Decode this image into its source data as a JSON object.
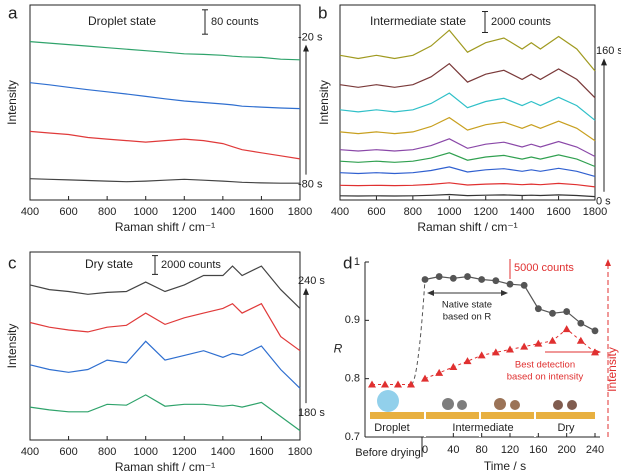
{
  "chart_data": [
    {
      "type": "line",
      "panel_label": "a",
      "title": "Droplet state",
      "xlabel": "Raman shift / cm⁻¹",
      "ylabel": "Intensity",
      "scale_bar": {
        "value": 80,
        "label": "80 counts"
      },
      "arrow": {
        "top": "-20 s",
        "bottom": "-80 s"
      },
      "xlim": [
        400,
        1800
      ],
      "xticks": [
        400,
        600,
        800,
        1000,
        1200,
        1400,
        1600,
        1800
      ],
      "ylim": [
        0,
        640
      ],
      "x": [
        400,
        500,
        600,
        700,
        800,
        900,
        1000,
        1100,
        1200,
        1300,
        1400,
        1450,
        1500,
        1600,
        1700,
        1800
      ],
      "series": [
        {
          "color": "#2fa36b",
          "values": [
            520,
            515,
            510,
            505,
            500,
            495,
            490,
            485,
            480,
            478,
            475,
            472,
            470,
            468,
            462,
            460
          ]
        },
        {
          "color": "#2f6fd0",
          "values": [
            385,
            378,
            370,
            362,
            355,
            348,
            340,
            332,
            325,
            320,
            315,
            312,
            308,
            305,
            302,
            300
          ]
        },
        {
          "color": "#e03a3a",
          "values": [
            225,
            220,
            215,
            205,
            200,
            195,
            190,
            195,
            200,
            195,
            185,
            175,
            165,
            155,
            145,
            135
          ]
        },
        {
          "color": "#444444",
          "values": [
            70,
            68,
            66,
            64,
            62,
            60,
            62,
            65,
            68,
            65,
            62,
            60,
            58,
            56,
            55,
            55
          ]
        }
      ]
    },
    {
      "type": "line",
      "panel_label": "b",
      "title": "Intermediate state",
      "xlabel": "Raman shift / cm⁻¹",
      "ylabel": "Intensity",
      "scale_bar": {
        "value": 2000,
        "label": "2000 counts"
      },
      "arrow": {
        "top": "160 s",
        "bottom": "0 s"
      },
      "xlim": [
        400,
        1800
      ],
      "xticks": [
        400,
        600,
        800,
        1000,
        1200,
        1400,
        1600,
        1800
      ],
      "ylim": [
        0,
        18600
      ],
      "x": [
        400,
        500,
        600,
        700,
        800,
        900,
        1000,
        1100,
        1200,
        1300,
        1400,
        1450,
        1500,
        1600,
        1700,
        1800
      ],
      "series": [
        {
          "color": "#a09a20",
          "values": [
            13800,
            13500,
            13800,
            13500,
            13800,
            14700,
            16200,
            14100,
            15000,
            15450,
            14400,
            15000,
            14400,
            15600,
            14400,
            12300
          ]
        },
        {
          "color": "#7a3a3a",
          "values": [
            11000,
            10750,
            11000,
            10750,
            11000,
            11750,
            13000,
            11250,
            12000,
            12375,
            11500,
            12000,
            11500,
            12500,
            11500,
            9750
          ]
        },
        {
          "color": "#30c0c8",
          "values": [
            8600,
            8400,
            8600,
            8400,
            8600,
            9200,
            10200,
            8800,
            9400,
            9700,
            9000,
            9400,
            9000,
            9800,
            9000,
            7600
          ]
        },
        {
          "color": "#c8a020",
          "values": [
            6500,
            6330,
            6500,
            6330,
            6500,
            7010,
            7860,
            6670,
            7180,
            7435,
            6840,
            7180,
            6840,
            7520,
            6840,
            5650
          ]
        },
        {
          "color": "#8a48a8",
          "values": [
            4800,
            4670,
            4800,
            4670,
            4800,
            5190,
            5840,
            4930,
            5320,
            5515,
            5060,
            5320,
            5060,
            5580,
            5060,
            4150
          ]
        },
        {
          "color": "#30a050",
          "values": [
            3700,
            3600,
            3700,
            3600,
            3700,
            4000,
            4500,
            3800,
            4100,
            4250,
            3900,
            4100,
            3900,
            4300,
            3900,
            3200
          ]
        },
        {
          "color": "#3060d0",
          "values": [
            2600,
            2530,
            2600,
            2530,
            2600,
            2810,
            3160,
            2670,
            2880,
            2985,
            2740,
            2880,
            2740,
            3020,
            2740,
            2250
          ]
        },
        {
          "color": "#e03030",
          "values": [
            1400,
            1370,
            1400,
            1370,
            1400,
            1490,
            1640,
            1430,
            1520,
            1565,
            1460,
            1520,
            1460,
            1580,
            1460,
            1250
          ]
        },
        {
          "color": "#333333",
          "values": [
            400,
            385,
            400,
            385,
            400,
            445,
            520,
            415,
            460,
            483,
            430,
            460,
            430,
            490,
            430,
            325
          ]
        }
      ]
    },
    {
      "type": "line",
      "panel_label": "c",
      "title": "Dry state",
      "xlabel": "Raman shift / cm⁻¹",
      "ylabel": "Intensity",
      "scale_bar": {
        "value": 2000,
        "label": "2000 counts"
      },
      "arrow": {
        "top": "240 s",
        "bottom": "180 s"
      },
      "xlim": [
        400,
        1800
      ],
      "xticks": [
        400,
        600,
        800,
        1000,
        1200,
        1400,
        1600,
        1800
      ],
      "ylim": [
        0,
        20000
      ],
      "x": [
        400,
        500,
        600,
        700,
        800,
        900,
        1000,
        1100,
        1200,
        1300,
        1400,
        1450,
        1500,
        1600,
        1700,
        1800
      ],
      "series": [
        {
          "color": "#444444",
          "values": [
            16500,
            16000,
            15800,
            15500,
            15700,
            15800,
            16800,
            15800,
            16500,
            17500,
            17500,
            18500,
            17500,
            18500,
            16000,
            14000
          ]
        },
        {
          "color": "#e03a3a",
          "values": [
            12500,
            12000,
            11700,
            11500,
            12000,
            12200,
            13500,
            12300,
            13000,
            13500,
            14000,
            14500,
            13500,
            14500,
            11000,
            9500
          ]
        },
        {
          "color": "#2f6fd0",
          "values": [
            8000,
            7500,
            7200,
            7500,
            8500,
            8200,
            10500,
            8500,
            9000,
            9500,
            8800,
            9200,
            9000,
            10000,
            7500,
            5500
          ]
        },
        {
          "color": "#2fa36b",
          "values": [
            3500,
            3200,
            3000,
            3000,
            3800,
            3700,
            4800,
            3600,
            3800,
            3800,
            3600,
            3700,
            3500,
            4000,
            2500,
            1000
          ]
        }
      ]
    },
    {
      "type": "combo",
      "panel_label": "d",
      "xlabel": "Time / s",
      "ylabel": "R",
      "y2label": "Intensity",
      "before_label": "Before drying",
      "scale_label": "5000 counts",
      "stages": [
        "Droplet",
        "Intermediate",
        "Dry"
      ],
      "annotations": [
        {
          "lines": [
            "Native state",
            "based on R"
          ]
        },
        {
          "lines": [
            "Best detection",
            "based on intensity"
          ]
        }
      ],
      "xlim": [
        0,
        240
      ],
      "xticks": [
        0,
        40,
        80,
        120,
        160,
        200,
        240
      ],
      "ylim": [
        0.7,
        1.0
      ],
      "yticks": [
        0.7,
        0.8,
        0.9,
        1
      ],
      "y2lim": [
        0.7,
        1.0
      ],
      "series": [
        {
          "color": "#555555",
          "x": [
            0,
            20,
            40,
            60,
            80,
            100,
            120,
            140,
            160,
            180,
            200,
            220,
            240
          ],
          "values": [
            0.97,
            0.975,
            0.972,
            0.975,
            0.97,
            0.968,
            0.962,
            0.96,
            0.92,
            0.912,
            0.915,
            0.895,
            0.882
          ]
        },
        {
          "color": "#e03030",
          "axis": "y2",
          "before_values": [
            0.79,
            0.79,
            0.79,
            0.79
          ],
          "x": [
            0,
            20,
            40,
            60,
            80,
            100,
            120,
            140,
            160,
            180,
            200,
            220,
            240
          ],
          "values": [
            0.8,
            0.81,
            0.82,
            0.83,
            0.84,
            0.845,
            0.85,
            0.855,
            0.86,
            0.865,
            0.885,
            0.865,
            0.845
          ]
        }
      ]
    }
  ]
}
